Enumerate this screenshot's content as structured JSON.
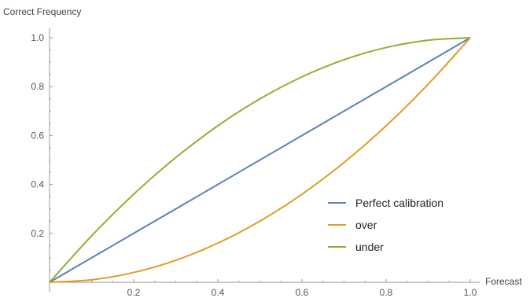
{
  "chart_data": {
    "type": "line",
    "xlabel": "Forecast",
    "ylabel": "Correct Frequency",
    "xlim": [
      0,
      1
    ],
    "ylim": [
      0,
      1
    ],
    "xticks": [
      0.2,
      0.4,
      0.6,
      0.8,
      1.0
    ],
    "xtick_labels": [
      "0.2",
      "0.4",
      "0.6",
      "0.8",
      "1.0"
    ],
    "yticks": [
      0.2,
      0.4,
      0.6,
      0.8,
      1.0
    ],
    "ytick_labels": [
      "0.2",
      "0.4",
      "0.6",
      "0.8",
      "1.0"
    ],
    "grid": false,
    "legend_position": "bottom-right",
    "x": [
      0,
      0.1,
      0.2,
      0.3,
      0.4,
      0.5,
      0.6,
      0.7,
      0.8,
      0.9,
      1.0
    ],
    "series": [
      {
        "name": "Perfect calibration",
        "color": "#5E81B5",
        "values": [
          0,
          0.1,
          0.2,
          0.3,
          0.4,
          0.5,
          0.6,
          0.7,
          0.8,
          0.9,
          1.0
        ]
      },
      {
        "name": "over",
        "color": "#E19C24",
        "values": [
          0,
          0.01,
          0.04,
          0.09,
          0.16,
          0.25,
          0.36,
          0.49,
          0.64,
          0.81,
          1.0
        ]
      },
      {
        "name": "under",
        "color": "#8FB032",
        "values": [
          0,
          0.19,
          0.36,
          0.51,
          0.64,
          0.75,
          0.84,
          0.91,
          0.96,
          0.99,
          1.0
        ]
      }
    ]
  }
}
